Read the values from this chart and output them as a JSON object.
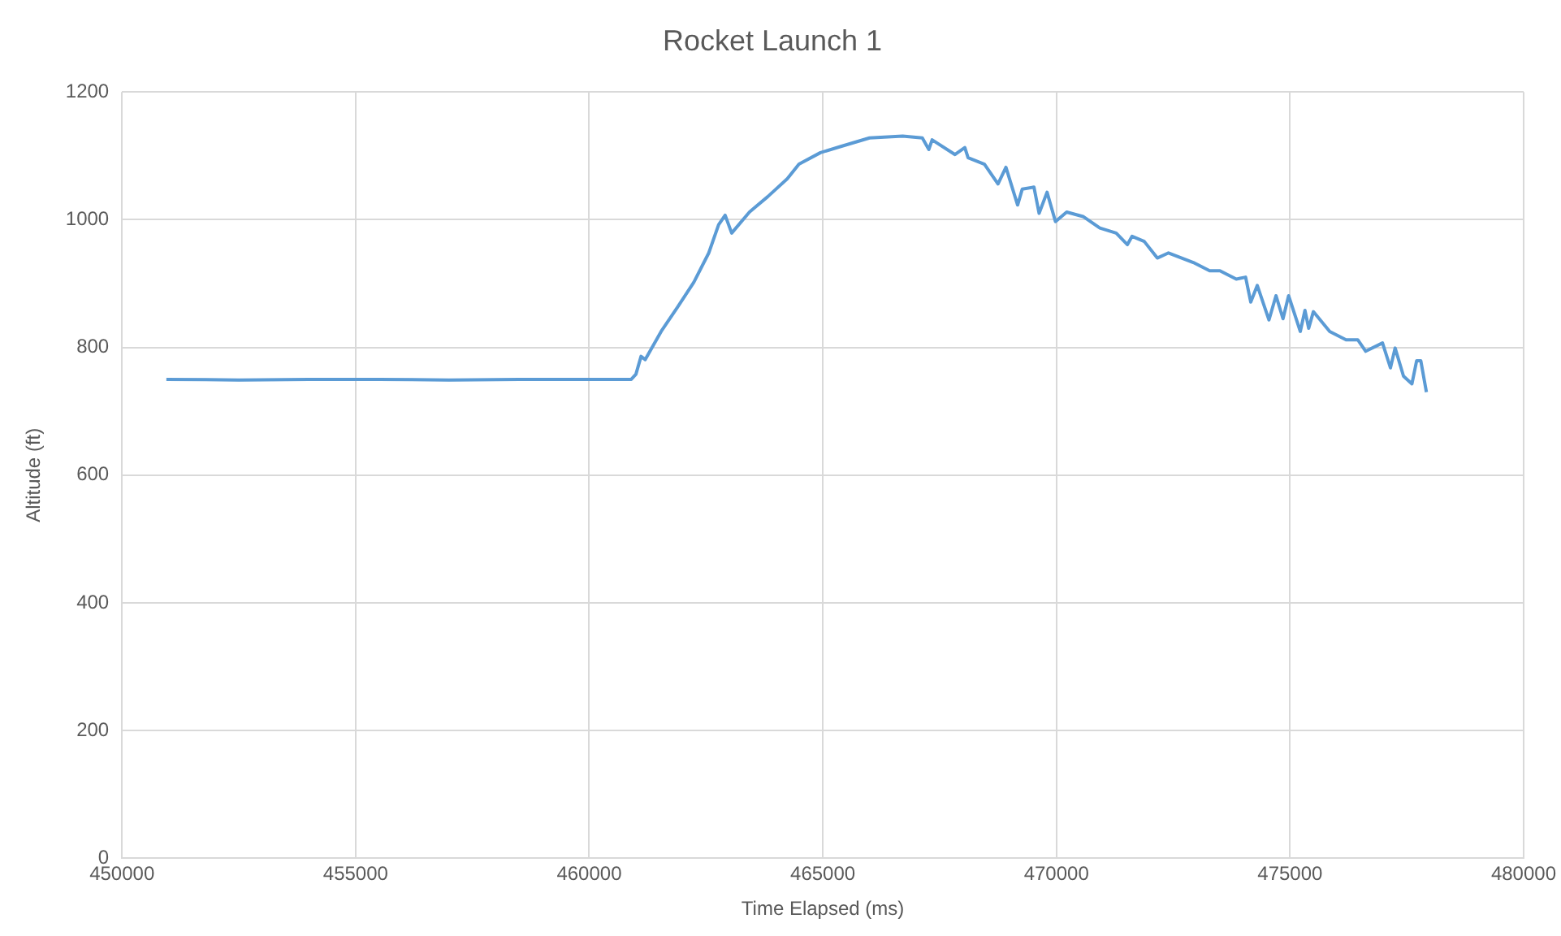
{
  "chart_data": {
    "type": "line",
    "title": "Rocket Launch 1",
    "xlabel": "Time Elapsed (ms)",
    "ylabel": "Altitude (ft)",
    "xlim": [
      450000,
      480000
    ],
    "xticks": [
      450000,
      455000,
      460000,
      465000,
      470000,
      475000,
      480000
    ],
    "ylim": [
      0,
      1200
    ],
    "yticks": [
      0,
      200,
      400,
      600,
      800,
      1000,
      1200
    ],
    "grid": true,
    "legend": false,
    "marker": "none",
    "line_style": "solid",
    "series": [
      {
        "color": "#5b9bd5",
        "x": [
          450950,
          452500,
          454000,
          455500,
          457000,
          458500,
          460000,
          460900,
          461000,
          461110,
          461200,
          461540,
          461890,
          462240,
          462560,
          462770,
          462910,
          463050,
          463430,
          463820,
          464240,
          464490,
          464950,
          465400,
          466000,
          466710,
          467130,
          467270,
          467340,
          467830,
          468040,
          468110,
          468460,
          468750,
          468920,
          469170,
          469270,
          469520,
          469630,
          469800,
          469980,
          470220,
          470570,
          470930,
          471280,
          471520,
          471620,
          471880,
          472160,
          472400,
          472930,
          473280,
          473500,
          473850,
          474050,
          474160,
          474300,
          474550,
          474700,
          474850,
          474970,
          475220,
          475320,
          475400,
          475500,
          475850,
          476200,
          476450,
          476620,
          476980,
          477150,
          477250,
          477430,
          477610,
          477710,
          477800,
          477920
        ],
        "values": [
          750,
          749,
          750,
          750,
          749,
          750,
          750,
          750,
          758,
          786,
          781,
          825,
          863,
          902,
          948,
          992,
          1007,
          979,
          1012,
          1036,
          1064,
          1087,
          1105,
          1115,
          1128,
          1131,
          1128,
          1110,
          1125,
          1102,
          1113,
          1097,
          1087,
          1056,
          1082,
          1023,
          1048,
          1051,
          1010,
          1043,
          997,
          1012,
          1005,
          987,
          979,
          961,
          974,
          966,
          940,
          948,
          933,
          920,
          920,
          907,
          910,
          871,
          897,
          843,
          881,
          845,
          881,
          825,
          858,
          830,
          856,
          825,
          812,
          812,
          794,
          807,
          768,
          799,
          755,
          743,
          779,
          779,
          730
        ]
      }
    ]
  }
}
